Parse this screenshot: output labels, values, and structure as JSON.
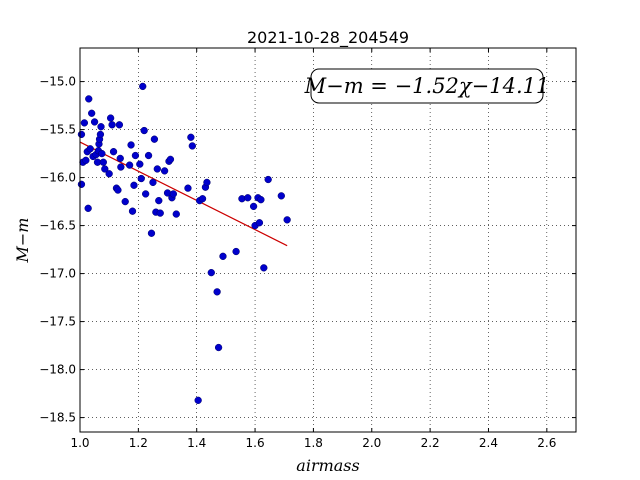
{
  "chart_data": {
    "type": "scatter",
    "title": "2021-10-28_204549",
    "xlabel": "airmass",
    "ylabel": "M−m",
    "xlim": [
      1.0,
      2.7
    ],
    "ylim": [
      -18.65,
      -14.65
    ],
    "x_ticks": [
      1.0,
      1.2,
      1.4,
      1.6,
      1.8,
      2.0,
      2.2,
      2.4,
      2.6
    ],
    "x_tick_labels": [
      "1.0",
      "1.2",
      "1.4",
      "1.6",
      "1.8",
      "2.0",
      "2.2",
      "2.4",
      "2.6"
    ],
    "y_ticks": [
      -15.0,
      -15.5,
      -16.0,
      -16.5,
      -17.0,
      -17.5,
      -18.0,
      -18.5
    ],
    "y_tick_labels": [
      "−15.0",
      "−15.5",
      "−16.0",
      "−16.5",
      "−17.0",
      "−17.5",
      "−18.0",
      "−18.5"
    ],
    "grid": true,
    "annotation": "M−m = −1.52χ−14.11",
    "points_color": "#0000cc",
    "fit_color": "#cc0000",
    "fit_line": {
      "slope": -1.52,
      "intercept": -14.11,
      "x_range": [
        1.0,
        1.71
      ]
    },
    "series": [
      {
        "points": [
          [
            1.005,
            -15.55
          ],
          [
            1.005,
            -16.07
          ],
          [
            1.01,
            -15.84
          ],
          [
            1.015,
            -15.43
          ],
          [
            1.02,
            -15.82
          ],
          [
            1.025,
            -15.73
          ],
          [
            1.028,
            -16.32
          ],
          [
            1.03,
            -15.18
          ],
          [
            1.035,
            -15.7
          ],
          [
            1.04,
            -15.33
          ],
          [
            1.045,
            -15.78
          ],
          [
            1.05,
            -15.42
          ],
          [
            1.055,
            -15.76
          ],
          [
            1.06,
            -15.84
          ],
          [
            1.063,
            -15.72
          ],
          [
            1.065,
            -15.65
          ],
          [
            1.067,
            -15.6
          ],
          [
            1.07,
            -15.55
          ],
          [
            1.072,
            -15.47
          ],
          [
            1.075,
            -15.75
          ],
          [
            1.08,
            -15.84
          ],
          [
            1.085,
            -15.91
          ],
          [
            1.1,
            -15.96
          ],
          [
            1.105,
            -15.38
          ],
          [
            1.11,
            -15.45
          ],
          [
            1.115,
            -15.73
          ],
          [
            1.125,
            -16.11
          ],
          [
            1.13,
            -16.13
          ],
          [
            1.135,
            -15.45
          ],
          [
            1.138,
            -15.8
          ],
          [
            1.14,
            -15.89
          ],
          [
            1.155,
            -16.25
          ],
          [
            1.17,
            -15.87
          ],
          [
            1.175,
            -15.66
          ],
          [
            1.18,
            -16.35
          ],
          [
            1.185,
            -16.08
          ],
          [
            1.19,
            -15.77
          ],
          [
            1.205,
            -15.86
          ],
          [
            1.21,
            -16.01
          ],
          [
            1.215,
            -15.05
          ],
          [
            1.22,
            -15.51
          ],
          [
            1.225,
            -16.17
          ],
          [
            1.235,
            -15.77
          ],
          [
            1.245,
            -16.58
          ],
          [
            1.25,
            -16.05
          ],
          [
            1.255,
            -15.6
          ],
          [
            1.26,
            -16.36
          ],
          [
            1.265,
            -15.91
          ],
          [
            1.27,
            -16.24
          ],
          [
            1.275,
            -16.37
          ],
          [
            1.29,
            -15.93
          ],
          [
            1.3,
            -16.16
          ],
          [
            1.305,
            -15.83
          ],
          [
            1.31,
            -15.81
          ],
          [
            1.315,
            -16.21
          ],
          [
            1.32,
            -16.17
          ],
          [
            1.33,
            -16.38
          ],
          [
            1.37,
            -16.11
          ],
          [
            1.38,
            -15.58
          ],
          [
            1.385,
            -15.67
          ],
          [
            1.405,
            -18.32
          ],
          [
            1.41,
            -16.24
          ],
          [
            1.42,
            -16.22
          ],
          [
            1.43,
            -16.1
          ],
          [
            1.435,
            -16.05
          ],
          [
            1.45,
            -16.99
          ],
          [
            1.47,
            -17.19
          ],
          [
            1.475,
            -17.77
          ],
          [
            1.49,
            -16.82
          ],
          [
            1.535,
            -16.77
          ],
          [
            1.555,
            -16.22
          ],
          [
            1.575,
            -16.21
          ],
          [
            1.595,
            -16.3
          ],
          [
            1.6,
            -16.5
          ],
          [
            1.61,
            -16.21
          ],
          [
            1.615,
            -16.47
          ],
          [
            1.62,
            -16.23
          ],
          [
            1.63,
            -16.94
          ],
          [
            1.645,
            -16.02
          ],
          [
            1.69,
            -16.19
          ],
          [
            1.71,
            -16.44
          ]
        ]
      }
    ]
  }
}
